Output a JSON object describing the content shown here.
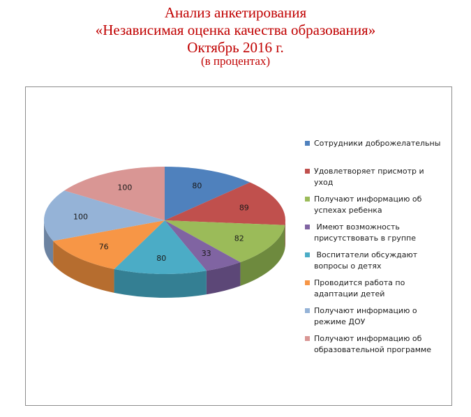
{
  "title": {
    "line1": "Анализ анкетирования",
    "line2": "«Независимая оценка качества образования»",
    "line3": "Октябрь 2016 г.",
    "subtitle": "(в процентах)"
  },
  "chart_data": {
    "type": "pie",
    "title": "Анализ анкетирования «Независимая оценка качества образования» Октябрь 2016 г.",
    "subtitle": "(в процентах)",
    "style": "3d",
    "legend_position": "right",
    "categories": [
      "Сотрудники доброжелательны",
      "Удовлетворяет присмотр и уход",
      "Получают информацию об успехах ребенка",
      " Имеют возможность присутствовать в группе",
      " Воспитатели обсуждают вопросы о детях",
      "Проводится работа по адаптации детей",
      "Получают информацию о режиме ДОУ",
      "Получают информацию об образовательной программе"
    ],
    "legend_labels": [
      "Сотрудники доброжелательны",
      "Удовлетворяет присмотр и уход",
      "Получают информацию об\nуспехах ребенка",
      " Имеют возможность\nприсутствовать в группе",
      " Воспитатели обсуждают\nвопросы о детях",
      "Проводится работа по\nадаптации детей",
      "Получают информацию о\nрежиме ДОУ",
      "Получают информацию об\nобразовательной программе"
    ],
    "values": [
      80,
      89,
      82,
      33,
      80,
      76,
      100,
      100
    ],
    "colors": [
      "#4f81bd",
      "#c0504d",
      "#9bbb59",
      "#8064a2",
      "#4bacc6",
      "#f79646",
      "#95b3d7",
      "#d99694"
    ],
    "side_colors": [
      "#3a6090",
      "#8e3b39",
      "#6e8a3e",
      "#5c4777",
      "#347f93",
      "#b66d2f",
      "#6c83a1",
      "#a26e6d"
    ]
  }
}
